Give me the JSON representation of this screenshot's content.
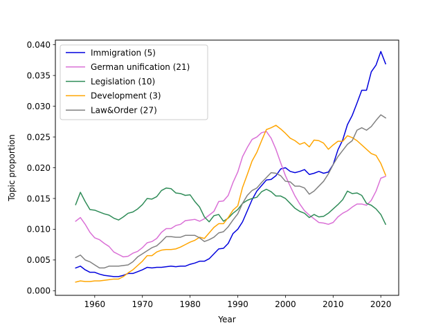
{
  "chart_data": {
    "type": "line",
    "xlabel": "Year",
    "ylabel": "Topic proportion",
    "xlim": [
      1951.75,
      2023.75
    ],
    "ylim": [
      -0.00075,
      0.04075
    ],
    "xticks": [
      1960,
      1970,
      1980,
      1990,
      2000,
      2010,
      2020
    ],
    "xtick_labels": [
      "1960",
      "1970",
      "1980",
      "1990",
      "2000",
      "2010",
      "2020"
    ],
    "yticks": [
      0.0,
      0.005,
      0.01,
      0.015,
      0.02,
      0.025,
      0.03,
      0.035,
      0.04
    ],
    "ytick_labels": [
      "0.000",
      "0.005",
      "0.010",
      "0.015",
      "0.020",
      "0.025",
      "0.030",
      "0.035",
      "0.040"
    ],
    "grid": false,
    "legend_position": "top-left",
    "years": [
      1956,
      1957,
      1958,
      1959,
      1960,
      1961,
      1962,
      1963,
      1964,
      1965,
      1966,
      1967,
      1968,
      1969,
      1970,
      1971,
      1972,
      1973,
      1974,
      1975,
      1976,
      1977,
      1978,
      1979,
      1980,
      1981,
      1982,
      1983,
      1984,
      1985,
      1986,
      1987,
      1988,
      1989,
      1990,
      1991,
      1992,
      1993,
      1994,
      1995,
      1996,
      1997,
      1998,
      1999,
      2000,
      2001,
      2002,
      2003,
      2004,
      2005,
      2006,
      2007,
      2008,
      2009,
      2010,
      2011,
      2012,
      2013,
      2014,
      2015,
      2016,
      2017,
      2018,
      2019,
      2020,
      2021
    ],
    "series": [
      {
        "name": "Immigration (5)",
        "color": "#0000dd",
        "values": [
          0.0037,
          0.004,
          0.0034,
          0.003,
          0.003,
          0.0027,
          0.0025,
          0.0024,
          0.0023,
          0.0023,
          0.0025,
          0.0028,
          0.0028,
          0.0031,
          0.0034,
          0.0038,
          0.0037,
          0.0038,
          0.0038,
          0.0039,
          0.004,
          0.0039,
          0.004,
          0.004,
          0.0043,
          0.0045,
          0.0048,
          0.0048,
          0.0052,
          0.006,
          0.0068,
          0.0069,
          0.0077,
          0.0093,
          0.01,
          0.0112,
          0.013,
          0.0148,
          0.0162,
          0.0171,
          0.018,
          0.0181,
          0.0187,
          0.0198,
          0.02,
          0.0194,
          0.0192,
          0.0194,
          0.0197,
          0.0189,
          0.0191,
          0.0194,
          0.0191,
          0.0193,
          0.0205,
          0.0229,
          0.0245,
          0.027,
          0.0285,
          0.0305,
          0.0326,
          0.0326,
          0.0356,
          0.0367,
          0.0389,
          0.0369
        ]
      },
      {
        "name": "German unification (21)",
        "color": "#da70d6",
        "values": [
          0.0113,
          0.0119,
          0.0108,
          0.0095,
          0.0086,
          0.0083,
          0.0077,
          0.0072,
          0.0063,
          0.0059,
          0.0055,
          0.0056,
          0.0061,
          0.0064,
          0.007,
          0.0078,
          0.008,
          0.0085,
          0.0095,
          0.0101,
          0.0101,
          0.0106,
          0.0108,
          0.0114,
          0.0115,
          0.0116,
          0.0113,
          0.0117,
          0.0123,
          0.0129,
          0.0145,
          0.0146,
          0.0155,
          0.0176,
          0.0193,
          0.0218,
          0.0233,
          0.0246,
          0.025,
          0.0257,
          0.0259,
          0.0248,
          0.023,
          0.0208,
          0.0187,
          0.017,
          0.0154,
          0.0141,
          0.013,
          0.0123,
          0.0117,
          0.0111,
          0.011,
          0.0108,
          0.0111,
          0.012,
          0.0126,
          0.013,
          0.0136,
          0.0141,
          0.0141,
          0.0139,
          0.0147,
          0.0162,
          0.0183,
          0.0186
        ]
      },
      {
        "name": "Legislation (10)",
        "color": "#2e8b57",
        "values": [
          0.014,
          0.016,
          0.0145,
          0.0132,
          0.0131,
          0.0128,
          0.0125,
          0.0123,
          0.0118,
          0.0115,
          0.012,
          0.0126,
          0.0128,
          0.0133,
          0.014,
          0.015,
          0.0149,
          0.0153,
          0.0163,
          0.0167,
          0.0166,
          0.0159,
          0.0158,
          0.0155,
          0.0156,
          0.0145,
          0.0136,
          0.012,
          0.0112,
          0.0122,
          0.0124,
          0.0113,
          0.0118,
          0.0126,
          0.0132,
          0.0142,
          0.0147,
          0.015,
          0.0152,
          0.0161,
          0.0165,
          0.0161,
          0.0154,
          0.0154,
          0.015,
          0.0142,
          0.0134,
          0.0129,
          0.0126,
          0.0119,
          0.0124,
          0.012,
          0.0121,
          0.0126,
          0.0133,
          0.014,
          0.0148,
          0.0162,
          0.0158,
          0.0159,
          0.0155,
          0.0142,
          0.0139,
          0.0133,
          0.0124,
          0.0108
        ]
      },
      {
        "name": "Development (3)",
        "color": "#ffa500",
        "values": [
          0.0014,
          0.0016,
          0.0015,
          0.0015,
          0.0016,
          0.0016,
          0.0017,
          0.0018,
          0.0019,
          0.0019,
          0.0023,
          0.0029,
          0.0034,
          0.0041,
          0.0048,
          0.0057,
          0.0057,
          0.0063,
          0.0066,
          0.0067,
          0.0067,
          0.0068,
          0.0071,
          0.0075,
          0.0079,
          0.0082,
          0.0087,
          0.0085,
          0.0094,
          0.0103,
          0.0109,
          0.0109,
          0.0119,
          0.0131,
          0.0138,
          0.0168,
          0.0189,
          0.0211,
          0.0225,
          0.0244,
          0.0262,
          0.0265,
          0.0269,
          0.0263,
          0.0256,
          0.0248,
          0.0244,
          0.0238,
          0.0241,
          0.0234,
          0.0245,
          0.0244,
          0.024,
          0.023,
          0.0237,
          0.0243,
          0.0243,
          0.0252,
          0.0249,
          0.0244,
          0.0237,
          0.023,
          0.0223,
          0.022,
          0.0207,
          0.0188
        ]
      },
      {
        "name": "Law&Order (27)",
        "color": "#808080",
        "values": [
          0.0054,
          0.0058,
          0.005,
          0.0047,
          0.0042,
          0.0037,
          0.0037,
          0.004,
          0.004,
          0.004,
          0.0041,
          0.0042,
          0.0047,
          0.0055,
          0.006,
          0.0065,
          0.007,
          0.0073,
          0.008,
          0.0088,
          0.0088,
          0.0087,
          0.0087,
          0.009,
          0.009,
          0.009,
          0.0086,
          0.008,
          0.0083,
          0.0087,
          0.0094,
          0.0096,
          0.0104,
          0.0115,
          0.0125,
          0.0142,
          0.0155,
          0.0163,
          0.0167,
          0.0176,
          0.0184,
          0.0192,
          0.0191,
          0.0187,
          0.0178,
          0.0177,
          0.017,
          0.017,
          0.0167,
          0.0157,
          0.0162,
          0.017,
          0.0178,
          0.019,
          0.0205,
          0.0218,
          0.0228,
          0.0238,
          0.0244,
          0.0261,
          0.0265,
          0.0261,
          0.0267,
          0.0277,
          0.0286,
          0.0281
        ]
      }
    ]
  }
}
